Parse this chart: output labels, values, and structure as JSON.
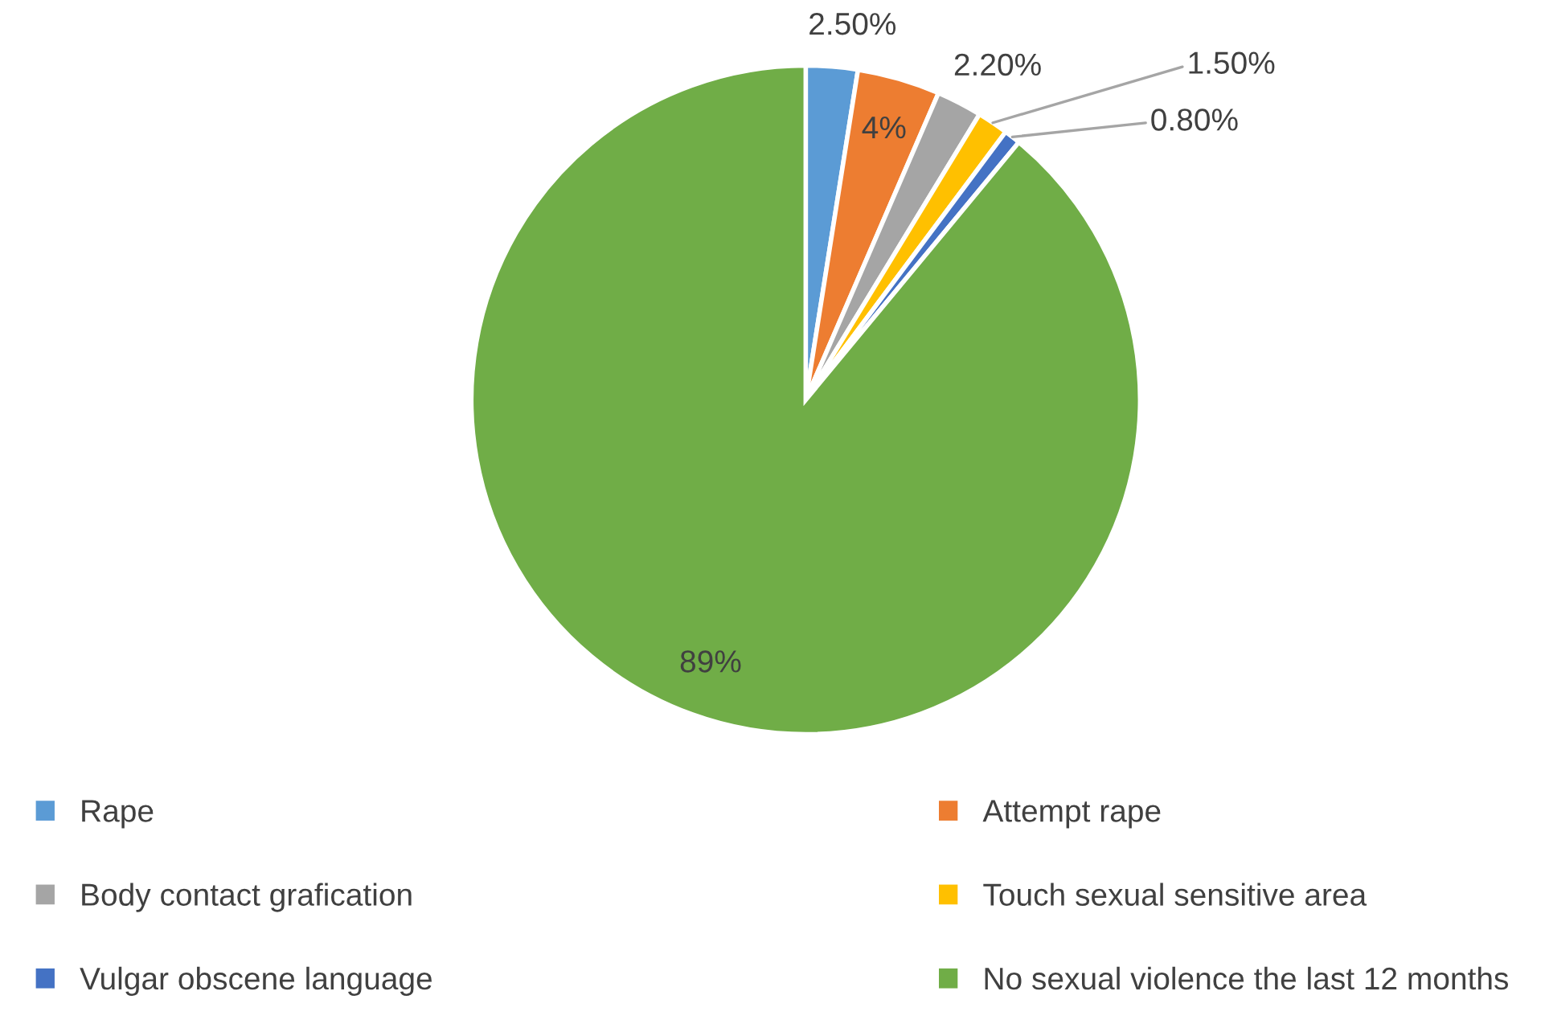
{
  "chart_data": {
    "type": "pie",
    "categories": [
      "Rape",
      "Attempt rape",
      "Body contact grafication",
      "Touch sexual sensitive area",
      "Vulgar obscene language",
      "No sexual violence the last 12 months"
    ],
    "values": [
      2.5,
      4,
      2.2,
      1.5,
      0.8,
      89
    ],
    "value_labels": [
      "2.50%",
      "4%",
      "2.20%",
      "1.50%",
      "0.80%",
      "89%"
    ],
    "colors": [
      "#5b9bd5",
      "#ed7d31",
      "#a5a5a5",
      "#ffc000",
      "#4472c4",
      "#70ad47"
    ],
    "legend": "bottom"
  }
}
